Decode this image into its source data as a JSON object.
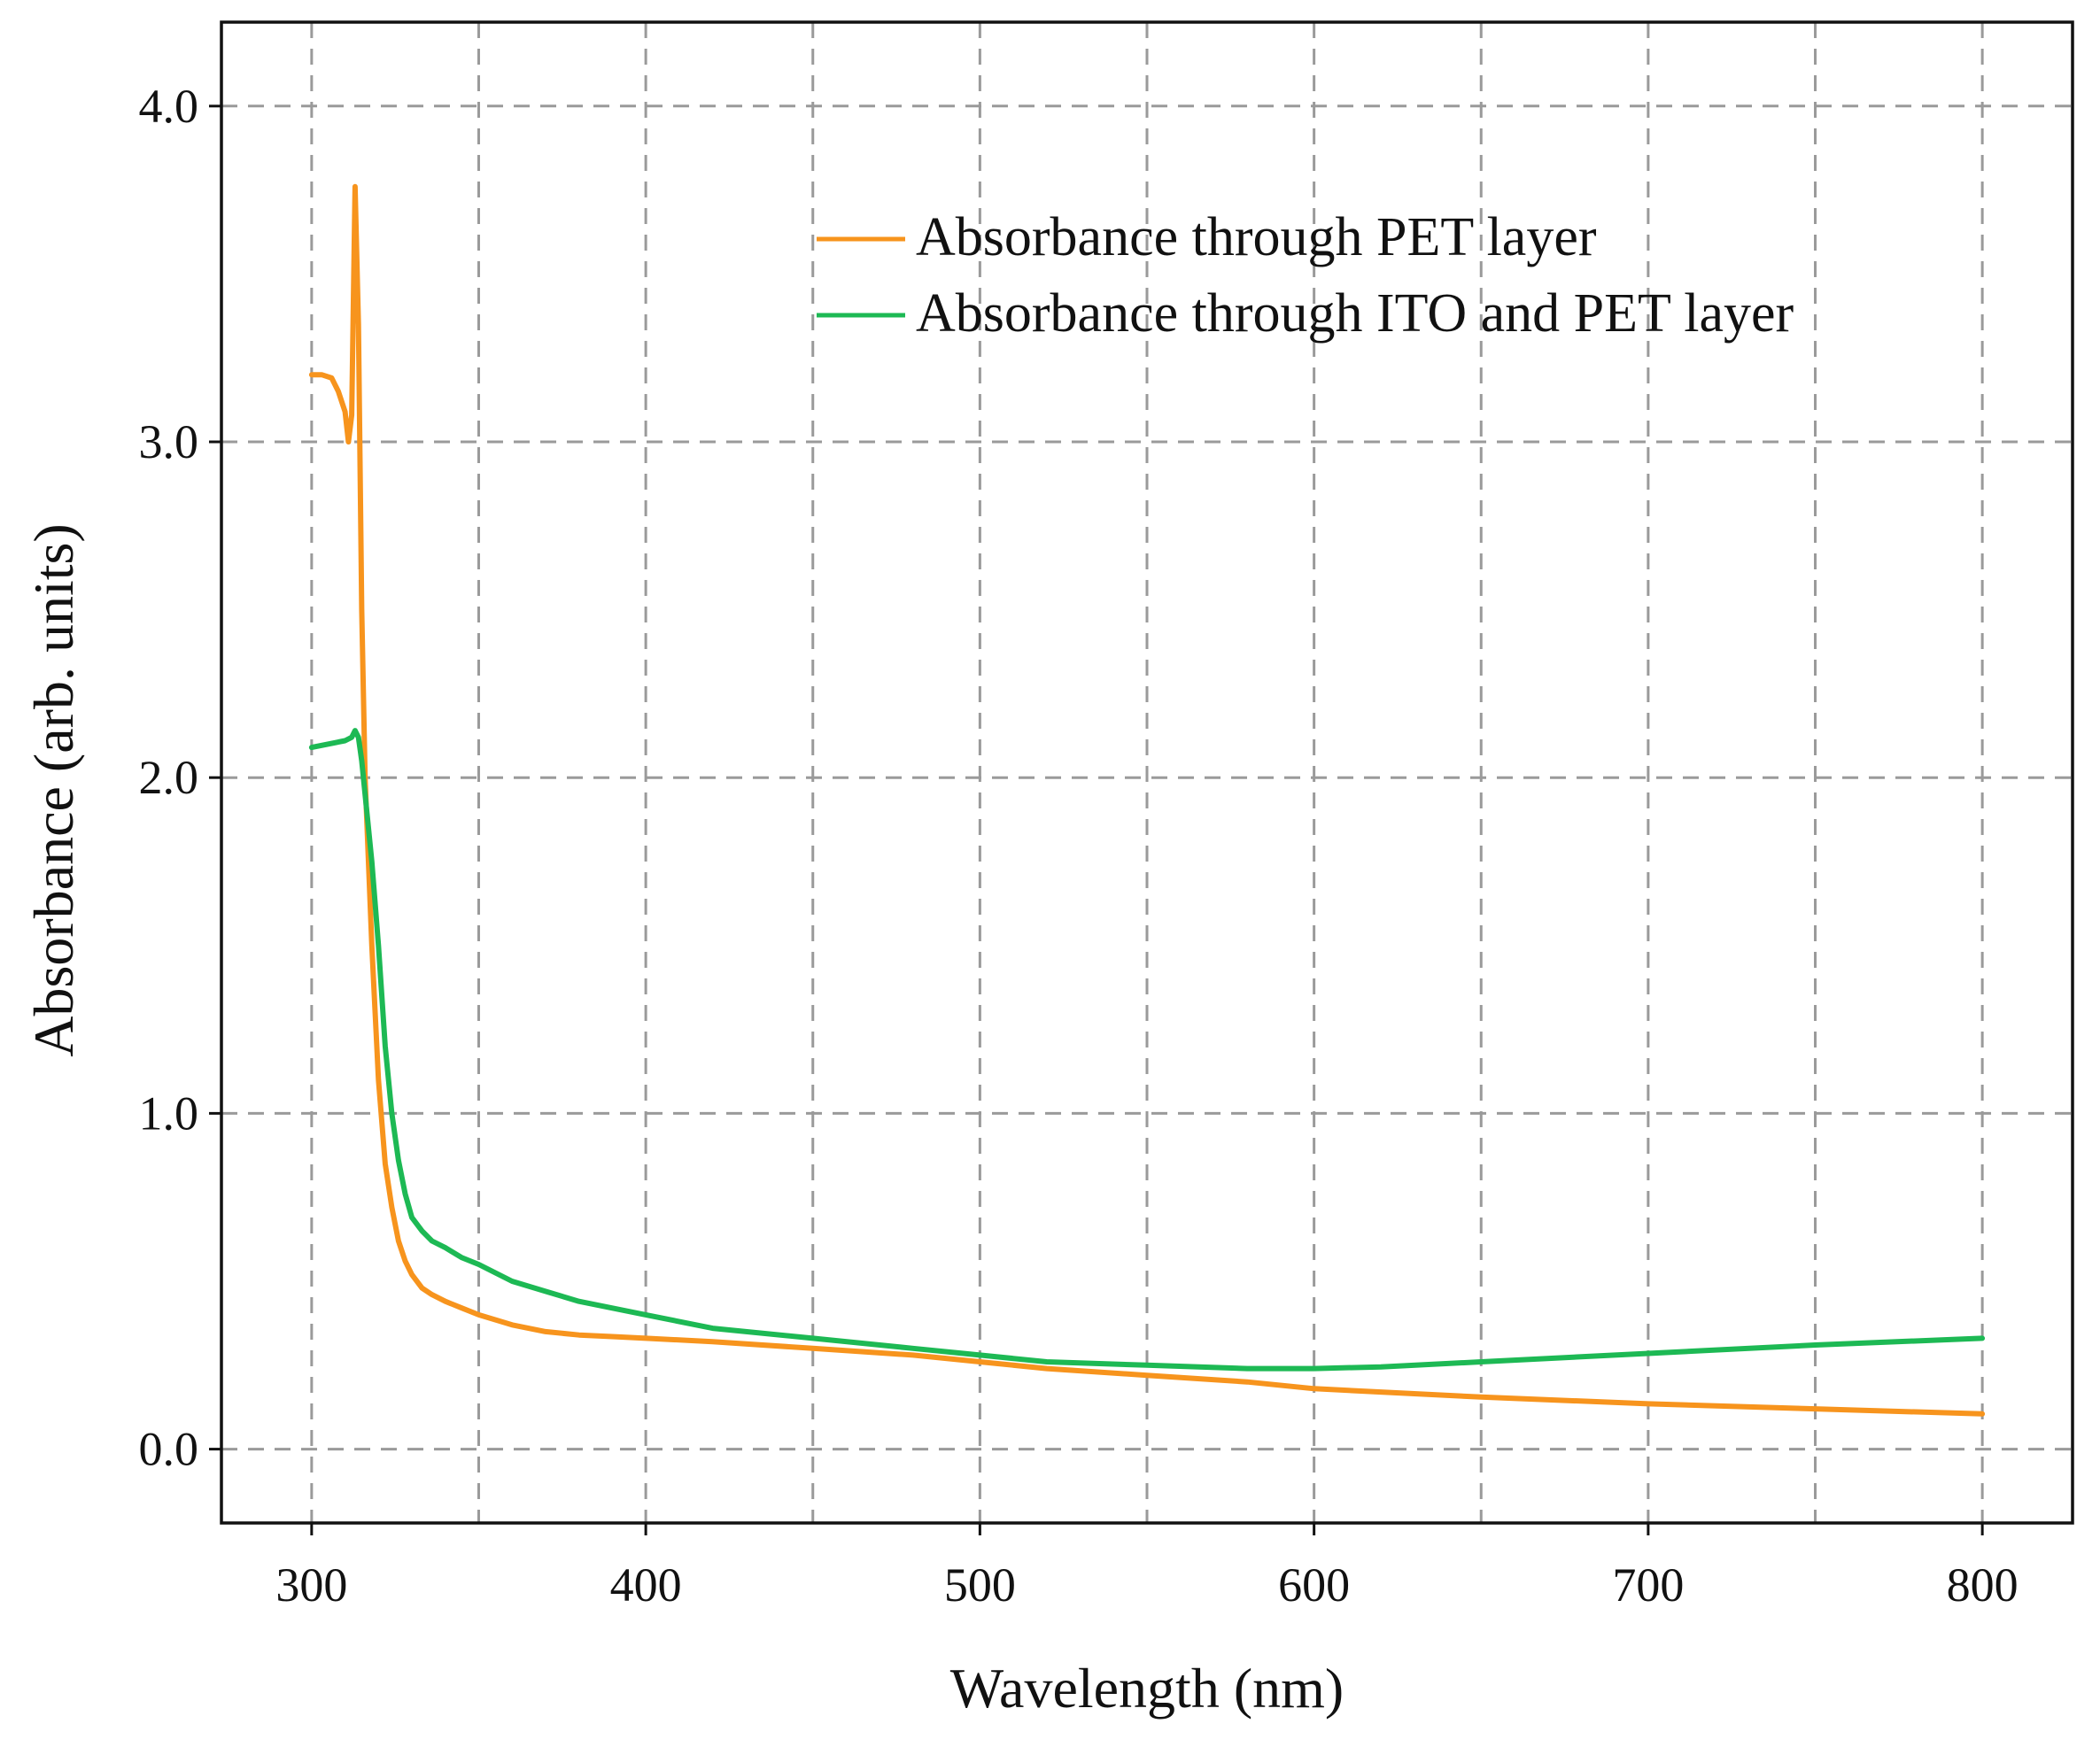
{
  "chart_data": {
    "type": "line",
    "title": "",
    "xlabel": "Wavelength (nm)",
    "ylabel": "Absorbance (arb. units)",
    "xlim": [
      273,
      827
    ],
    "ylim": [
      -0.22,
      4.25
    ],
    "xticks": [
      300,
      400,
      500,
      600,
      700,
      800
    ],
    "xtick_labels": [
      "300",
      "400",
      "500",
      "600",
      "700",
      "800"
    ],
    "xgrid": [
      300,
      350,
      400,
      450,
      500,
      550,
      600,
      650,
      700,
      750,
      800
    ],
    "yticks": [
      0,
      1,
      2,
      3,
      4
    ],
    "ytick_labels": [
      "0.0",
      "1.0",
      "2.0",
      "3.0",
      "4.0"
    ],
    "grid": true,
    "legend_position": "top-right",
    "series": [
      {
        "name": "Absorbance through PET layer",
        "color": "#f7941d",
        "x": [
          300,
          303,
          306,
          308,
          310,
          311,
          312,
          313,
          314,
          315,
          316,
          318,
          320,
          322,
          324,
          326,
          328,
          330,
          333,
          336,
          340,
          345,
          350,
          360,
          370,
          380,
          390,
          400,
          420,
          450,
          480,
          500,
          520,
          550,
          580,
          600,
          620,
          650,
          700,
          750,
          800
        ],
        "y": [
          3.2,
          3.2,
          3.19,
          3.15,
          3.09,
          3.0,
          3.08,
          3.76,
          3.35,
          2.5,
          2.0,
          1.5,
          1.1,
          0.85,
          0.72,
          0.62,
          0.56,
          0.52,
          0.48,
          0.46,
          0.44,
          0.42,
          0.4,
          0.37,
          0.35,
          0.34,
          0.335,
          0.33,
          0.32,
          0.3,
          0.28,
          0.26,
          0.24,
          0.22,
          0.2,
          0.18,
          0.17,
          0.155,
          0.135,
          0.12,
          0.105
        ]
      },
      {
        "name": "Absorbance through ITO and PET layer",
        "color": "#1db954",
        "x": [
          300,
          305,
          310,
          312,
          313,
          314,
          315,
          316,
          318,
          320,
          322,
          324,
          326,
          328,
          330,
          333,
          336,
          340,
          345,
          350,
          360,
          370,
          380,
          390,
          400,
          420,
          450,
          480,
          500,
          520,
          550,
          580,
          600,
          620,
          650,
          700,
          750,
          800
        ],
        "y": [
          2.09,
          2.1,
          2.11,
          2.12,
          2.14,
          2.12,
          2.05,
          1.95,
          1.75,
          1.5,
          1.2,
          1.0,
          0.86,
          0.76,
          0.69,
          0.65,
          0.62,
          0.6,
          0.57,
          0.55,
          0.5,
          0.47,
          0.44,
          0.42,
          0.4,
          0.36,
          0.33,
          0.3,
          0.28,
          0.26,
          0.25,
          0.24,
          0.24,
          0.245,
          0.26,
          0.285,
          0.31,
          0.33
        ]
      }
    ]
  }
}
